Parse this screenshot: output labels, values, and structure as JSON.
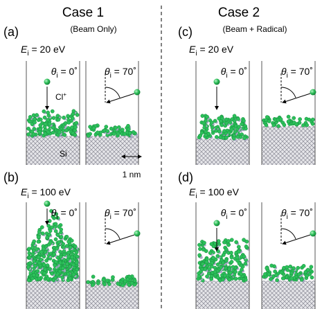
{
  "header": {
    "case1": {
      "title": "Case 1",
      "subtitle": "(Beam Only)"
    },
    "case2": {
      "title": "Case 2",
      "subtitle": "(Beam + Radical)"
    }
  },
  "panels": [
    {
      "label": "(a)",
      "energy": {
        "symbol": "E",
        "subscript": "i",
        "text": " = 20 eV"
      },
      "angles": [
        {
          "symbol": "θ",
          "subscript": "i",
          "text": " = 0˚"
        },
        {
          "symbol": "θ",
          "subscript": "i",
          "text": " = 70˚"
        }
      ]
    },
    {
      "label": "(b)",
      "energy": {
        "symbol": "E",
        "subscript": "i",
        "text": " = 100 eV"
      },
      "angles": [
        {
          "symbol": "θ",
          "subscript": "i",
          "text": " = 0˚"
        },
        {
          "symbol": "θ",
          "subscript": "i",
          "text": " = 70˚"
        }
      ]
    },
    {
      "label": "(c)",
      "energy": {
        "symbol": "E",
        "subscript": "i",
        "text": " = 20 eV"
      },
      "angles": [
        {
          "symbol": "θ",
          "subscript": "i",
          "text": " = 0˚"
        },
        {
          "symbol": "θ",
          "subscript": "i",
          "text": " = 70˚"
        }
      ]
    },
    {
      "label": "(d)",
      "energy": {
        "symbol": "E",
        "subscript": "i",
        "text": " = 100 eV"
      },
      "angles": [
        {
          "symbol": "θ",
          "subscript": "i",
          "text": " = 0˚"
        },
        {
          "symbol": "θ",
          "subscript": "i",
          "text": " = 70˚"
        }
      ]
    }
  ],
  "annotations": {
    "ion": {
      "symbol": "Cl",
      "superscript": "+"
    },
    "substrate": "Si",
    "scale": "1 nm"
  }
}
